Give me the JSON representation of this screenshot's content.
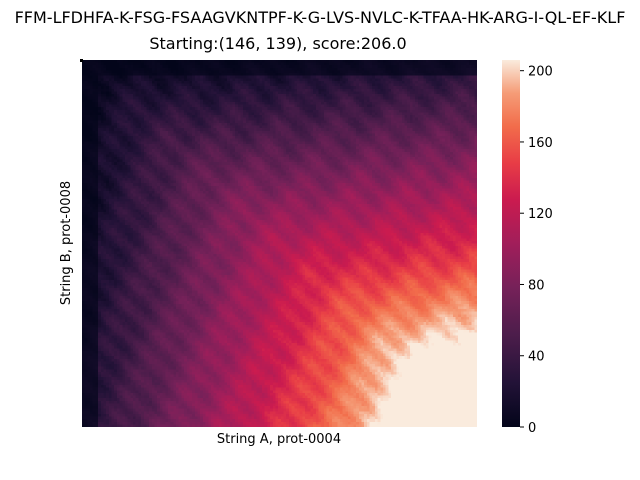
{
  "chart_data": {
    "type": "heatmap",
    "title_line1": "FFM-LFDHFA-K-FSG-FSAAGVKNTPF-K-G-LVS-NVLC-K-TFAA-HK-ARG-I-QL-EF-KLF",
    "title_line2": "Starting:(146, 139), score:206.0",
    "xlabel": "String A, prot-0004",
    "ylabel": "String B, prot-0008",
    "x_ticks_shown": false,
    "y_ticks_shown": false,
    "n_cols": 147,
    "n_rows": 140,
    "start_cell": [
      146,
      139
    ],
    "max_score": 206.0,
    "colorbar": {
      "colormap": "rocket",
      "range": [
        0,
        206
      ],
      "ticks": [
        "0",
        "40",
        "80",
        "120",
        "160",
        "200"
      ],
      "tick_values": [
        0,
        40,
        80,
        120,
        160,
        200
      ]
    }
  }
}
